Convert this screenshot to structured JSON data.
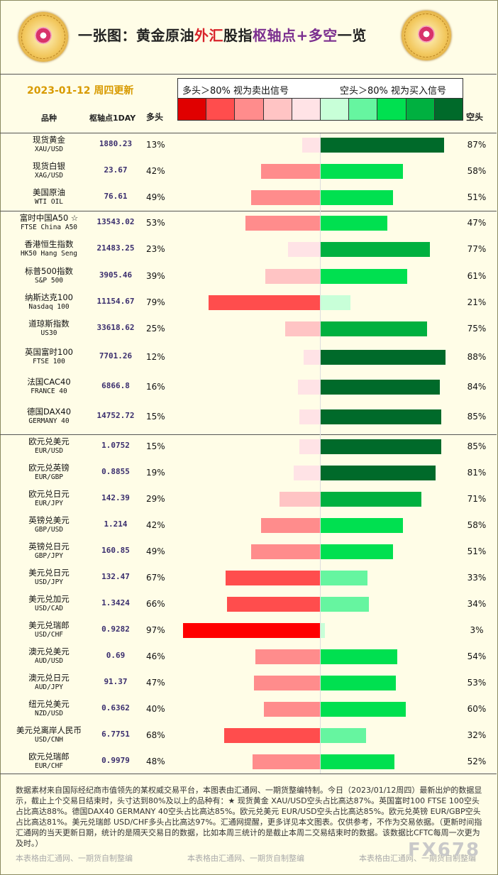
{
  "title": {
    "part1": "一张图：黄金原油",
    "part2": "外汇",
    "part3": "股指",
    "part4": "枢轴点+多空",
    "part5": "一览"
  },
  "date_label": "2023-01-12 周四更新",
  "headers": {
    "name": "品种",
    "pivot": "枢轴点1DAY",
    "long": "多头",
    "short": "空头"
  },
  "legend": {
    "left_text": "多头＞80% 视为卖出信号",
    "right_text": "空头＞80% 视为买入信号",
    "swatch_colors": [
      "#e00000",
      "#ff4d4d",
      "#ff8c8c",
      "#ffc4c4",
      "#ffe3e6",
      "#c8ffd8",
      "#66f5a0",
      "#00e050",
      "#00b040",
      "#006a2a"
    ]
  },
  "chart_data": {
    "type": "bar",
    "title": "一张图：黄金原油外汇股指枢轴点+多空一览",
    "groups": [
      {
        "rows": [
          {
            "name": "现货黄金",
            "code": "XAU/USD",
            "pivot": "1880.23",
            "long": 13,
            "short": 87
          },
          {
            "name": "现货白银",
            "code": "XAG/USD",
            "pivot": "23.67",
            "long": 42,
            "short": 58
          },
          {
            "name": "美国原油",
            "code": "WTI OIL",
            "pivot": "76.61",
            "long": 49,
            "short": 51
          }
        ]
      },
      {
        "rows": [
          {
            "name": "富时中国A50 ☆",
            "code": "FTSE China A50",
            "pivot": "13543.02",
            "long": 53,
            "short": 47
          },
          {
            "name": "香港恒生指数",
            "code": "HK50 Hang Seng",
            "pivot": "21483.25",
            "long": 23,
            "short": 77
          },
          {
            "name": "标普500指数",
            "code": "S&P 500",
            "pivot": "3905.46",
            "long": 39,
            "short": 61
          },
          {
            "name": "纳斯达克100",
            "code": "Nasdaq 100",
            "pivot": "11154.67",
            "long": 79,
            "short": 21
          },
          {
            "name": "道琼斯指数",
            "code": "US30",
            "pivot": "33618.62",
            "long": 25,
            "short": 75
          },
          {
            "name": "英国富时100",
            "code": "FTSE 100",
            "pivot": "7701.26",
            "long": 12,
            "short": 88
          },
          {
            "name": "法国CAC40",
            "code": "FRANCE 40",
            "pivot": "6866.8",
            "long": 16,
            "short": 84
          },
          {
            "name": "德国DAX40",
            "code": "GERMANY 40",
            "pivot": "14752.72",
            "long": 15,
            "short": 85
          }
        ]
      },
      {
        "rows": [
          {
            "name": "欧元兑美元",
            "code": "EUR/USD",
            "pivot": "1.0752",
            "long": 15,
            "short": 85
          },
          {
            "name": "欧元兑英镑",
            "code": "EUR/GBP",
            "pivot": "0.8855",
            "long": 19,
            "short": 81
          },
          {
            "name": "欧元兑日元",
            "code": "EUR/JPY",
            "pivot": "142.39",
            "long": 29,
            "short": 71
          },
          {
            "name": "英镑兑美元",
            "code": "GBP/USD",
            "pivot": "1.214",
            "long": 42,
            "short": 58
          },
          {
            "name": "英镑兑日元",
            "code": "GBP/JPY",
            "pivot": "160.85",
            "long": 49,
            "short": 51
          },
          {
            "name": "美元兑日元",
            "code": "USD/JPY",
            "pivot": "132.47",
            "long": 67,
            "short": 33
          },
          {
            "name": "美元兑加元",
            "code": "USD/CAD",
            "pivot": "1.3424",
            "long": 66,
            "short": 34
          },
          {
            "name": "美元兑瑞郎",
            "code": "USD/CHF",
            "pivot": "0.9282",
            "long": 97,
            "short": 3
          },
          {
            "name": "澳元兑美元",
            "code": "AUD/USD",
            "pivot": "0.69",
            "long": 46,
            "short": 54
          },
          {
            "name": "澳元兑日元",
            "code": "AUD/JPY",
            "pivot": "91.37",
            "long": 47,
            "short": 53
          },
          {
            "name": "纽元兑美元",
            "code": "NZD/USD",
            "pivot": "0.6362",
            "long": 40,
            "short": 60
          },
          {
            "name": "美元兑离岸人民币",
            "code": "USD/CNH",
            "pivot": "6.7751",
            "long": 68,
            "short": 32
          },
          {
            "name": "欧元兑瑞郎",
            "code": "EUR/CHF",
            "pivot": "0.9979",
            "long": 48,
            "short": 52
          }
        ]
      }
    ]
  },
  "note": "数据素材来自国际经纪商市值领先的某权威交易平台，本图表由汇通网、一期货整编特制。今日（2023/01/12周四）最新出炉的数据显示，截止上个交易日结束时，头寸达到80%及以上的品种有：★ 现货黄金 XAU/USD空头占比高达87%。英国富时100 FTSE 100空头占比高达88%。德国DAX40 GERMANY 40空头占比高达85%。欧元兑美元 EUR/USD空头占比高达85%。欧元兑英镑 EUR/GBP空头占比高达81%。美元兑瑞郎 USD/CHF多头占比高达97%。汇通网提醒，更多详见本文图表。仅供参考，不作为交易依据。（更新时间指汇通网的当天更新日期，统计的是隔天交易日的数据，比如本周三统计的是截止本周二交易结束时的数据。该数据比CFTC每周一次更为及时。）",
  "footer": [
    "本表格由汇通网、一期货自制整编",
    "本表格由汇通网、一期货自制整编",
    "本表格由汇通网、一期货自制整编"
  ],
  "watermark": "FX678"
}
